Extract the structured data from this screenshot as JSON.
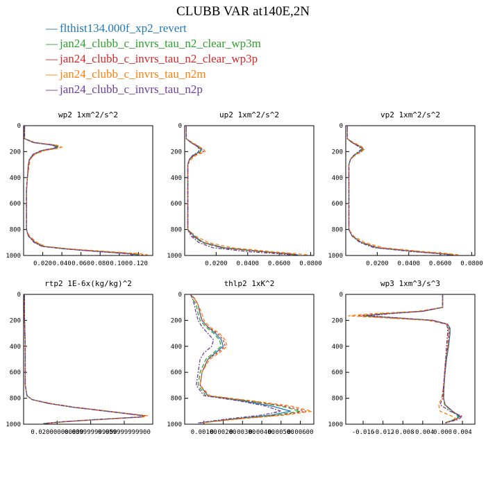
{
  "title": "CLUBB VAR at140E,2N",
  "legend": [
    {
      "label": "flthist134.000f_xp2_revert",
      "color": "#1f77b4"
    },
    {
      "label": "jan24_clubb_c_invrs_tau_n2_clear_wp3m",
      "color": "#2ca02c"
    },
    {
      "label": "jan24_clubb_c_invrs_tau_n2_clear_wp3p",
      "color": "#d62728"
    },
    {
      "label": "jan24_clubb_c_invrs_tau_n2m",
      "color": "#ff7f0e"
    },
    {
      "label": "jan24_clubb_c_invrs_tau_n2p",
      "color": "#6a3d9a"
    }
  ],
  "chart_data": [
    {
      "type": "line",
      "title": "wp2  1xm^2/s^2",
      "ylim": [
        0,
        1000
      ],
      "y_inverted": true,
      "y_ticks": [
        "0",
        "200",
        "400",
        "600",
        "800",
        "1000"
      ],
      "xlim": [
        0,
        0.135
      ],
      "x_ticks": [
        0.02,
        0.04,
        0.06,
        0.08,
        0.1,
        0.12
      ],
      "x_tick_labels": [
        "0.020",
        "0.040",
        "0.060",
        "0.080",
        "0.100",
        "0.120"
      ],
      "y": [
        0,
        100,
        130,
        150,
        165,
        175,
        190,
        220,
        260,
        300,
        400,
        500,
        600,
        700,
        800,
        850,
        900,
        930,
        950,
        970,
        985,
        995
      ],
      "series": [
        {
          "values": [
            0.001,
            0.001,
            0.01,
            0.03,
            0.035,
            0.032,
            0.02,
            0.01,
            0.006,
            0.005,
            0.004,
            0.003,
            0.003,
            0.003,
            0.003,
            0.005,
            0.012,
            0.02,
            0.045,
            0.08,
            0.11,
            0.12
          ]
        },
        {
          "values": [
            0.001,
            0.001,
            0.011,
            0.032,
            0.037,
            0.033,
            0.021,
            0.011,
            0.006,
            0.005,
            0.004,
            0.003,
            0.003,
            0.003,
            0.003,
            0.005,
            0.013,
            0.021,
            0.046,
            0.082,
            0.112,
            0.122
          ]
        },
        {
          "values": [
            0.001,
            0.001,
            0.012,
            0.034,
            0.039,
            0.035,
            0.022,
            0.011,
            0.007,
            0.005,
            0.004,
            0.003,
            0.003,
            0.003,
            0.003,
            0.005,
            0.012,
            0.022,
            0.047,
            0.083,
            0.115,
            0.125
          ]
        },
        {
          "values": [
            0.001,
            0.001,
            0.012,
            0.035,
            0.04,
            0.036,
            0.023,
            0.012,
            0.007,
            0.006,
            0.004,
            0.003,
            0.003,
            0.003,
            0.003,
            0.006,
            0.014,
            0.023,
            0.05,
            0.09,
            0.12,
            0.13
          ]
        },
        {
          "values": [
            0.001,
            0.001,
            0.01,
            0.031,
            0.034,
            0.031,
            0.019,
            0.01,
            0.006,
            0.005,
            0.004,
            0.003,
            0.003,
            0.003,
            0.003,
            0.005,
            0.011,
            0.019,
            0.043,
            0.078,
            0.106,
            0.115
          ]
        }
      ]
    },
    {
      "type": "line",
      "title": "up2  1xm^2/s^2",
      "ylim": [
        0,
        1000
      ],
      "y_inverted": true,
      "y_ticks": [
        "0",
        "200",
        "400",
        "600",
        "800",
        "1000"
      ],
      "xlim": [
        0,
        0.082
      ],
      "x_ticks": [
        0.02,
        0.04,
        0.06,
        0.08
      ],
      "x_tick_labels": [
        "0.0200",
        "0.0400",
        "0.0600",
        "0.0800"
      ],
      "y": [
        0,
        100,
        130,
        160,
        180,
        200,
        230,
        260,
        300,
        400,
        500,
        600,
        700,
        800,
        850,
        900,
        940,
        970,
        985,
        995
      ],
      "series": [
        {
          "values": [
            0.001,
            0.001,
            0.004,
            0.009,
            0.011,
            0.01,
            0.005,
            0.003,
            0.002,
            0.002,
            0.002,
            0.002,
            0.002,
            0.002,
            0.006,
            0.012,
            0.025,
            0.05,
            0.065,
            0.072
          ]
        },
        {
          "values": [
            0.001,
            0.001,
            0.004,
            0.008,
            0.01,
            0.01,
            0.006,
            0.003,
            0.002,
            0.002,
            0.002,
            0.002,
            0.002,
            0.002,
            0.005,
            0.011,
            0.023,
            0.048,
            0.063,
            0.07
          ]
        },
        {
          "values": [
            0.001,
            0.001,
            0.004,
            0.008,
            0.01,
            0.012,
            0.006,
            0.003,
            0.002,
            0.002,
            0.002,
            0.002,
            0.002,
            0.002,
            0.005,
            0.012,
            0.024,
            0.049,
            0.064,
            0.071
          ]
        },
        {
          "values": [
            0.001,
            0.001,
            0.005,
            0.009,
            0.012,
            0.013,
            0.007,
            0.004,
            0.002,
            0.002,
            0.002,
            0.002,
            0.002,
            0.002,
            0.007,
            0.015,
            0.03,
            0.055,
            0.07,
            0.078
          ]
        },
        {
          "values": [
            0.001,
            0.001,
            0.004,
            0.008,
            0.009,
            0.009,
            0.005,
            0.003,
            0.002,
            0.002,
            0.002,
            0.002,
            0.002,
            0.002,
            0.004,
            0.009,
            0.018,
            0.04,
            0.058,
            0.068
          ]
        }
      ]
    },
    {
      "type": "line",
      "title": "vp2  1xm^2/s^2",
      "ylim": [
        0,
        1000
      ],
      "y_inverted": true,
      "y_ticks": [
        "0",
        "200",
        "400",
        "600",
        "800",
        "1000"
      ],
      "xlim": [
        0,
        0.082
      ],
      "x_ticks": [
        0.02,
        0.04,
        0.06,
        0.08
      ],
      "x_tick_labels": [
        "0.0200",
        "0.0400",
        "0.0600",
        "0.0800"
      ],
      "y": [
        0,
        100,
        130,
        160,
        180,
        200,
        230,
        260,
        300,
        400,
        500,
        600,
        700,
        800,
        850,
        900,
        940,
        970,
        985,
        995
      ],
      "series": [
        {
          "values": [
            0.001,
            0.001,
            0.004,
            0.009,
            0.011,
            0.009,
            0.005,
            0.003,
            0.002,
            0.002,
            0.002,
            0.002,
            0.002,
            0.002,
            0.004,
            0.01,
            0.02,
            0.045,
            0.06,
            0.068
          ]
        },
        {
          "values": [
            0.001,
            0.001,
            0.004,
            0.009,
            0.011,
            0.009,
            0.005,
            0.003,
            0.002,
            0.002,
            0.002,
            0.002,
            0.002,
            0.002,
            0.004,
            0.01,
            0.02,
            0.045,
            0.06,
            0.068
          ]
        },
        {
          "values": [
            0.001,
            0.001,
            0.004,
            0.009,
            0.011,
            0.01,
            0.005,
            0.003,
            0.002,
            0.002,
            0.002,
            0.002,
            0.002,
            0.002,
            0.004,
            0.01,
            0.021,
            0.046,
            0.061,
            0.069
          ]
        },
        {
          "values": [
            0.001,
            0.001,
            0.005,
            0.01,
            0.012,
            0.01,
            0.006,
            0.003,
            0.002,
            0.002,
            0.002,
            0.002,
            0.002,
            0.002,
            0.005,
            0.012,
            0.024,
            0.05,
            0.065,
            0.072
          ]
        },
        {
          "values": [
            0.001,
            0.001,
            0.004,
            0.008,
            0.01,
            0.008,
            0.005,
            0.003,
            0.002,
            0.002,
            0.002,
            0.002,
            0.002,
            0.002,
            0.004,
            0.009,
            0.018,
            0.042,
            0.058,
            0.066
          ]
        }
      ]
    },
    {
      "type": "line",
      "title": "rtp2  1E-6x(kg/kg)^2",
      "ylim": [
        0,
        1000
      ],
      "y_inverted": true,
      "y_ticks": [
        "0",
        "200",
        "400",
        "600",
        "800",
        "1000"
      ],
      "xlim": [
        0,
        0.077
      ],
      "x_ticks": [
        0.02,
        0.04,
        0.06
      ],
      "x_tick_labels": [
        "0.020000000000",
        "0.039999999900",
        "0.059999999900"
      ],
      "y": [
        0,
        100,
        200,
        300,
        400,
        500,
        600,
        700,
        780,
        810,
        840,
        870,
        900,
        920,
        935,
        945,
        960,
        980,
        995
      ],
      "series": [
        {
          "values": [
            0.0005,
            0.0005,
            0.0006,
            0.0008,
            0.001,
            0.001,
            0.001,
            0.001,
            0.002,
            0.005,
            0.015,
            0.03,
            0.05,
            0.062,
            0.072,
            0.07,
            0.05,
            0.025,
            0.012
          ]
        },
        {
          "values": [
            0.0005,
            0.0005,
            0.0006,
            0.0008,
            0.001,
            0.001,
            0.001,
            0.001,
            0.002,
            0.005,
            0.015,
            0.03,
            0.05,
            0.063,
            0.072,
            0.069,
            0.049,
            0.024,
            0.012
          ]
        },
        {
          "values": [
            0.0005,
            0.0005,
            0.0006,
            0.0008,
            0.001,
            0.001,
            0.001,
            0.001,
            0.002,
            0.005,
            0.016,
            0.031,
            0.051,
            0.063,
            0.073,
            0.07,
            0.05,
            0.025,
            0.012
          ]
        },
        {
          "values": [
            0.0005,
            0.0005,
            0.0006,
            0.0008,
            0.001,
            0.001,
            0.001,
            0.001,
            0.002,
            0.005,
            0.016,
            0.031,
            0.051,
            0.064,
            0.074,
            0.071,
            0.051,
            0.026,
            0.013
          ]
        },
        {
          "values": [
            0.0005,
            0.0005,
            0.0006,
            0.0008,
            0.001,
            0.001,
            0.001,
            0.001,
            0.002,
            0.005,
            0.015,
            0.03,
            0.049,
            0.062,
            0.071,
            0.069,
            0.048,
            0.024,
            0.011
          ]
        }
      ]
    },
    {
      "type": "line",
      "title": "thlp2  1xK^2",
      "ylim": [
        0,
        1000
      ],
      "y_inverted": true,
      "y_ticks": [
        "0",
        "200",
        "400",
        "600",
        "800",
        "1000"
      ],
      "xlim": [
        0,
        0.0067
      ],
      "x_ticks": [
        0.001,
        0.002,
        0.003,
        0.004,
        0.005,
        0.006
      ],
      "x_tick_labels": [
        "0.00100",
        "0.00200",
        "0.00300",
        "0.00400",
        "0.00500",
        "0.00600"
      ],
      "y": [
        0,
        30,
        80,
        150,
        200,
        250,
        300,
        350,
        400,
        450,
        500,
        600,
        700,
        780,
        820,
        860,
        900,
        930,
        960,
        990
      ],
      "series": [
        {
          "values": [
            0.0003,
            0.0005,
            0.0007,
            0.0008,
            0.0009,
            0.0012,
            0.0016,
            0.0019,
            0.002,
            0.0016,
            0.0012,
            0.0009,
            0.0008,
            0.0012,
            0.003,
            0.0045,
            0.0055,
            0.0045,
            0.0025,
            0.0008
          ]
        },
        {
          "values": [
            0.0003,
            0.0004,
            0.0006,
            0.0007,
            0.0008,
            0.0011,
            0.0015,
            0.0018,
            0.0019,
            0.0015,
            0.0011,
            0.0008,
            0.0007,
            0.0011,
            0.0032,
            0.005,
            0.006,
            0.0048,
            0.0026,
            0.0008
          ]
        },
        {
          "values": [
            0.0003,
            0.0005,
            0.0007,
            0.0008,
            0.0009,
            0.0012,
            0.0017,
            0.002,
            0.0021,
            0.0017,
            0.0012,
            0.0009,
            0.0008,
            0.0012,
            0.0033,
            0.0052,
            0.0063,
            0.005,
            0.0027,
            0.0008
          ]
        },
        {
          "values": [
            0.0003,
            0.0005,
            0.0007,
            0.0009,
            0.001,
            0.0013,
            0.0018,
            0.0021,
            0.0022,
            0.0018,
            0.0013,
            0.0009,
            0.0008,
            0.0013,
            0.0035,
            0.0055,
            0.0066,
            0.0052,
            0.0028,
            0.0009
          ]
        },
        {
          "values": [
            0.0003,
            0.0004,
            0.0005,
            0.0006,
            0.0007,
            0.0009,
            0.0012,
            0.0015,
            0.0014,
            0.001,
            0.0008,
            0.0007,
            0.0006,
            0.001,
            0.0028,
            0.0042,
            0.005,
            0.004,
            0.0022,
            0.0007
          ]
        }
      ]
    },
    {
      "type": "line",
      "title": "wp3  1xm^3/s^3",
      "ylim": [
        0,
        1000
      ],
      "y_inverted": true,
      "y_ticks": [
        "0",
        "200",
        "400",
        "600",
        "800",
        "1000"
      ],
      "xlim": [
        -0.0195,
        0.0065
      ],
      "x_ticks": [
        -0.016,
        -0.012,
        -0.008,
        -0.004,
        0.0,
        0.004
      ],
      "x_tick_labels": [
        "-0.016",
        "-0.012",
        "-0.008",
        "-0.004",
        "0.000",
        "0.004"
      ],
      "y": [
        0,
        100,
        130,
        150,
        165,
        180,
        200,
        230,
        260,
        300,
        400,
        500,
        600,
        700,
        800,
        850,
        900,
        940,
        965,
        990
      ],
      "series": [
        {
          "values": [
            0.0,
            0.0,
            -0.004,
            -0.012,
            -0.016,
            -0.01,
            -0.002,
            0.001,
            0.0015,
            0.0015,
            0.0012,
            0.0008,
            0.0005,
            0.0003,
            0.0002,
            0.0005,
            0.002,
            0.0035,
            0.0025,
            0.0005
          ]
        },
        {
          "values": [
            0.0,
            0.0,
            -0.004,
            -0.012,
            -0.016,
            -0.01,
            -0.002,
            0.001,
            0.0012,
            0.0012,
            0.001,
            0.0007,
            0.0004,
            0.0003,
            0.0002,
            0.0004,
            0.0018,
            0.0032,
            0.0022,
            0.0004
          ]
        },
        {
          "values": [
            0.0,
            0.0,
            -0.004,
            -0.013,
            -0.017,
            -0.011,
            -0.002,
            0.001,
            0.0013,
            0.0013,
            0.0011,
            0.0007,
            0.0005,
            0.0003,
            0.0002,
            0.0005,
            0.002,
            0.0036,
            0.0026,
            0.0005
          ]
        },
        {
          "values": [
            0.0,
            0.0,
            -0.005,
            -0.015,
            -0.019,
            -0.012,
            -0.003,
            0.0008,
            0.0012,
            0.0012,
            0.001,
            0.0006,
            0.0004,
            0.0002,
            -0.0002,
            -0.0008,
            -0.0005,
            0.002,
            0.003,
            0.0006
          ]
        },
        {
          "values": [
            0.0,
            0.0,
            -0.004,
            -0.011,
            -0.015,
            -0.009,
            -0.002,
            0.0008,
            0.001,
            0.001,
            0.0008,
            0.0006,
            0.0004,
            0.0002,
            0.0,
            -0.0005,
            0.0015,
            0.004,
            0.003,
            0.0006
          ]
        }
      ]
    }
  ]
}
